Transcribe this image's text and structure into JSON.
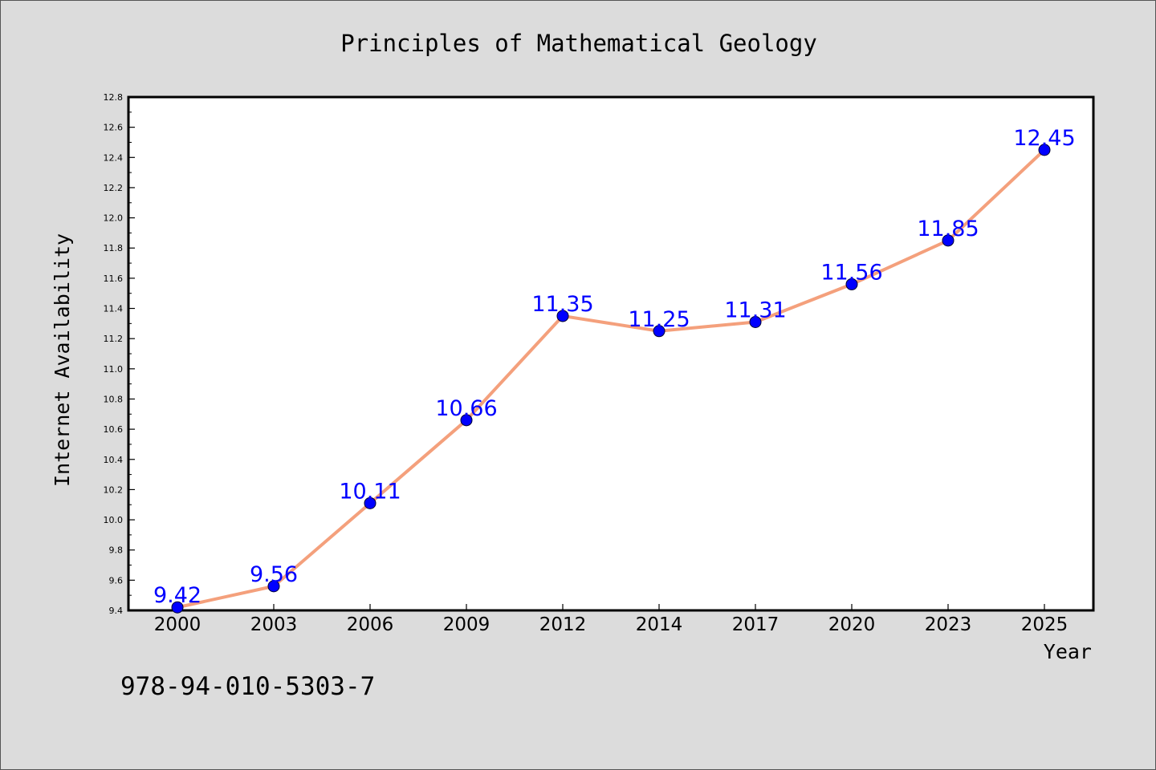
{
  "chart_data": {
    "type": "line",
    "title": "Principles of Mathematical Geology",
    "xlabel": "Year",
    "ylabel": "Internet Availability",
    "categories": [
      "2000",
      "2003",
      "2006",
      "2009",
      "2012",
      "2014",
      "2017",
      "2020",
      "2023",
      "2025"
    ],
    "series": [
      {
        "values": [
          9.42,
          9.56,
          10.11,
          10.66,
          11.35,
          11.25,
          11.31,
          11.56,
          11.85,
          12.45
        ],
        "data_labels": [
          "9.42",
          "9.56",
          "10.11",
          "10.66",
          "11.35",
          "11.25",
          "11.31",
          "11.56",
          "11.85",
          "12.45"
        ],
        "line_color": "#f4a07c",
        "marker_color": "#0000ff",
        "label_color": "#0000ff"
      }
    ],
    "ylim": [
      9.4,
      12.8
    ],
    "y_ticks": [
      "9.4",
      "9.6",
      "9.8",
      "10.0",
      "10.2",
      "10.4",
      "10.6",
      "10.8",
      "11.0",
      "11.2",
      "11.4",
      "11.6",
      "11.8",
      "12.0",
      "12.2",
      "12.4",
      "12.6",
      "12.8"
    ],
    "grid": false,
    "legend": "none"
  },
  "annotation": "978-94-010-5303-7",
  "colors": {
    "background": "#dcdcdc",
    "plot_background": "#ffffff",
    "axis": "#000000"
  }
}
